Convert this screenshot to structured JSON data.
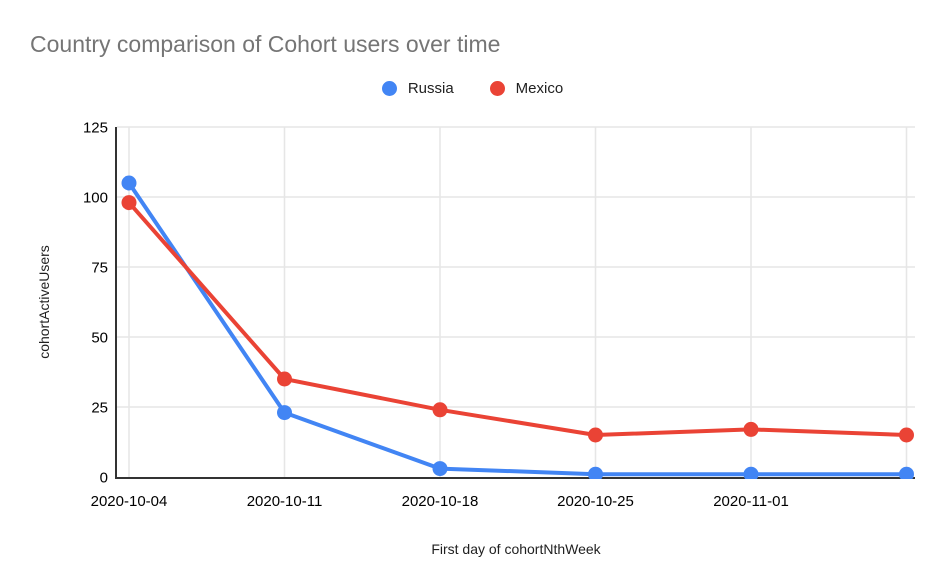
{
  "title": "Country comparison of Cohort users over time",
  "chart_data": {
    "type": "line",
    "title": "Country comparison of Cohort users over time",
    "categories": [
      "2020-10-04",
      "2020-10-11",
      "2020-10-18",
      "2020-10-25",
      "2020-11-01",
      ""
    ],
    "series": [
      {
        "name": "Russia",
        "color": "#4285F4",
        "values": [
          105,
          23,
          3,
          1,
          1,
          1
        ]
      },
      {
        "name": "Mexico",
        "color": "#EA4335",
        "values": [
          98,
          35,
          24,
          15,
          17,
          15
        ]
      }
    ],
    "xlabel": "First day of cohortNthWeek",
    "ylabel": "cohortActiveUsers",
    "ylim": [
      0,
      125
    ],
    "yticks": [
      0,
      25,
      50,
      75,
      100,
      125
    ],
    "grid": true,
    "legend_position": "top"
  },
  "colors": {
    "title_text": "#757575",
    "tick_text": "#000000",
    "axis_title_text": "#1f1f1f",
    "gridline": "#e6e6e6",
    "axis_line": "#333333",
    "background": "#ffffff",
    "series_russia": "#4285F4",
    "series_mexico": "#EA4335"
  }
}
